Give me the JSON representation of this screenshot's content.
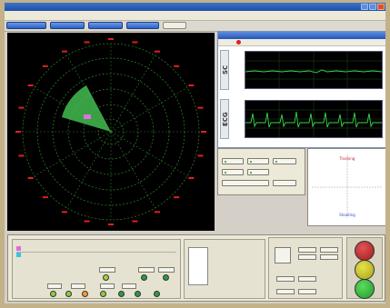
{
  "window": {
    "title": ""
  },
  "menu": [
    "",
    "",
    "",
    "",
    ""
  ],
  "toolbar": {
    "buttons": [
      "",
      "",
      "",
      "",
      ""
    ]
  },
  "acquisition": {
    "title": "",
    "panels": [
      {
        "tag": "SC",
        "ticks": [
          "",
          "",
          "",
          "",
          "",
          ""
        ],
        "x_ticks": [
          "",
          "",
          "",
          "",
          ""
        ]
      },
      {
        "tag": "ECG",
        "ticks": [
          "",
          "",
          "",
          "",
          "",
          ""
        ],
        "x_ticks": [
          "",
          "",
          "",
          "",
          ""
        ]
      }
    ]
  },
  "controls": {
    "buttons": [
      "",
      "",
      "",
      "",
      "",
      "",
      "",
      ""
    ]
  },
  "plot": {
    "top": "Tracking",
    "left": "",
    "right": "",
    "bottom": "Shooting"
  },
  "status": {
    "legend_title": "",
    "legend_rows": [
      {
        "label": "",
        "value1": "",
        "value2": "",
        "value3": ""
      }
    ],
    "group2_title": "",
    "group2_labels": [
      "",
      "",
      "",
      "",
      ""
    ],
    "group3_title": "",
    "buttons_right": [
      "",
      "",
      "",
      "",
      "",
      "",
      "",
      "",
      ""
    ],
    "mid_labels": [
      "",
      "",
      ""
    ]
  },
  "colors": {
    "radar_grid": "#2a7a2a",
    "sweep": "#3fb24a",
    "signal": "#39d94a",
    "tick": "#e02020"
  }
}
